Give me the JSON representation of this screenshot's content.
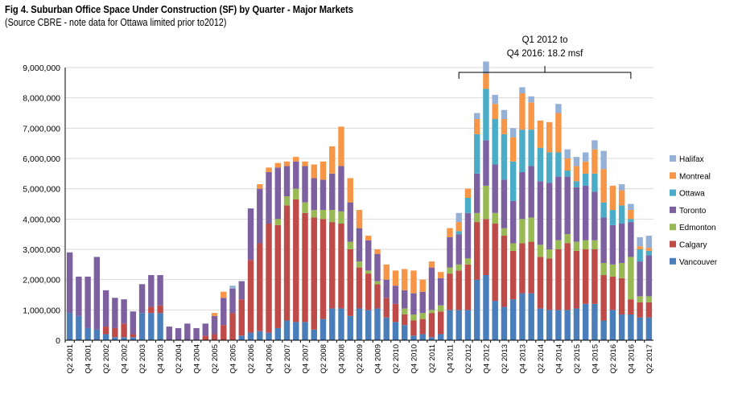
{
  "chart_data": {
    "type": "bar",
    "stacked": true,
    "title": "Fig 4. Suburban Office Space Under Construction (SF) by Quarter - Major Markets",
    "subtitle": "(Source CBRE - note data for Ottawa limited prior to2012)",
    "ylim": [
      0,
      9000000
    ],
    "y_ticks": [
      "0",
      "1,000,000",
      "2,000,000",
      "3,000,000",
      "4,000,000",
      "5,000,000",
      "6,000,000",
      "7,000,000",
      "8,000,000",
      "9,000,000"
    ],
    "grid": true,
    "legend_position": "right",
    "annotation": {
      "line1": "Q1 2012 to",
      "line2": "Q4 2016: 18.2 msf",
      "from_category": "Q1 2012",
      "to_category": "Q4 2016"
    },
    "categories": [
      "Q2 2001",
      "Q3 2001",
      "Q4 2001",
      "Q1 2002",
      "Q2 2002",
      "Q3 2002",
      "Q4 2002",
      "Q1 2003",
      "Q2 2003",
      "Q3 2003",
      "Q4 2003",
      "Q1 2004",
      "Q2 2004",
      "Q3 2004",
      "Q4 2004",
      "Q1 2005",
      "Q2 2005",
      "Q3 2005",
      "Q4 2005",
      "Q1 2006",
      "Q2 2006",
      "Q3 2006",
      "Q4 2006",
      "Q1 2007",
      "Q2 2007",
      "Q3 2007",
      "Q4 2007",
      "Q1 2008",
      "Q2 2008",
      "Q3 2008",
      "Q4 2008",
      "Q1 2009",
      "Q2 2009",
      "Q3 2009",
      "Q4 2009",
      "Q1 2010",
      "Q2 2010",
      "Q3 2010",
      "Q4 2010",
      "Q1 2011",
      "Q2 2011",
      "Q3 2011",
      "Q4 2011",
      "Q1 2012",
      "Q2 2012",
      "Q3 2012",
      "Q4 2012",
      "Q1 2013",
      "Q2 2013",
      "Q3 2013",
      "Q4 2013",
      "Q1 2014",
      "Q2 2014",
      "Q3 2014",
      "Q4 2014",
      "Q1 2015",
      "Q2 2015",
      "Q3 2015",
      "Q4 2015",
      "Q1 2016",
      "Q2 2016",
      "Q3 2016",
      "Q4 2016",
      "Q1 2017",
      "Q2 2017"
    ],
    "x_tick_labels": [
      "Q2 2001",
      "",
      "Q4 2001",
      "",
      "Q2 2002",
      "",
      "Q4 2002",
      "",
      "Q2 2003",
      "",
      "Q4 2003",
      "",
      "Q2 2004",
      "",
      "Q4 2004",
      "",
      "Q2 2005",
      "",
      "Q4 2005",
      "",
      "Q2 2006",
      "",
      "Q4 2006",
      "",
      "Q2 2007",
      "",
      "Q4 2007",
      "",
      "Q2 2008",
      "",
      "Q4 2008",
      "",
      "Q2 2009",
      "",
      "Q4 2009",
      "",
      "Q2 2010",
      "",
      "Q4 2010",
      "",
      "Q2 2011",
      "",
      "Q4 2011",
      "",
      "Q2 2012",
      "",
      "Q4 2012",
      "",
      "Q2 2013",
      "",
      "Q4 2013",
      "",
      "Q2 2014",
      "",
      "Q4 2014",
      "",
      "Q2 2015",
      "",
      "Q4 2015",
      "",
      "Q2 2016",
      "",
      "Q4 2016",
      "",
      "Q2 2017"
    ],
    "series": [
      {
        "name": "Vancouver",
        "color": "#4a7ebb",
        "values": [
          900000,
          800000,
          400000,
          350000,
          200000,
          100000,
          100000,
          100000,
          900000,
          900000,
          900000,
          0,
          0,
          0,
          0,
          0,
          0,
          0,
          0,
          150000,
          250000,
          300000,
          250000,
          400000,
          650000,
          600000,
          600000,
          350000,
          700000,
          1050000,
          1050000,
          800000,
          1050000,
          1000000,
          1050000,
          750000,
          600000,
          500000,
          150000,
          200000,
          100000,
          200000,
          1000000,
          1000000,
          1000000,
          2000000,
          2150000,
          1300000,
          1100000,
          1350000,
          1550000,
          1550000,
          1050000,
          1000000,
          1000000,
          1000000,
          1050000,
          1200000,
          1200000,
          650000,
          1000000,
          850000,
          850000,
          750000,
          750000
        ]
      },
      {
        "name": "Calgary",
        "color": "#be4b48",
        "values": [
          0,
          0,
          0,
          0,
          250000,
          300000,
          450000,
          100000,
          0,
          200000,
          250000,
          0,
          0,
          0,
          0,
          150000,
          200000,
          500000,
          900000,
          1200000,
          2400000,
          2900000,
          3600000,
          3400000,
          3800000,
          4050000,
          3600000,
          3700000,
          3300000,
          2850000,
          2800000,
          2200000,
          1350000,
          1200000,
          800000,
          650000,
          600000,
          350000,
          500000,
          500000,
          800000,
          750000,
          1200000,
          1300000,
          1500000,
          1900000,
          1850000,
          2550000,
          2350000,
          1600000,
          1650000,
          1700000,
          1700000,
          1700000,
          2000000,
          2200000,
          1900000,
          1800000,
          1800000,
          1500000,
          1100000,
          1200000,
          500000,
          500000,
          500000
        ]
      },
      {
        "name": "Edmonton",
        "color": "#98b954",
        "values": [
          0,
          0,
          0,
          0,
          0,
          0,
          0,
          0,
          0,
          0,
          0,
          0,
          0,
          0,
          0,
          0,
          0,
          0,
          0,
          0,
          0,
          0,
          0,
          200000,
          300000,
          350000,
          350000,
          250000,
          300000,
          400000,
          400000,
          250000,
          200000,
          100000,
          100000,
          0,
          0,
          200000,
          200000,
          200000,
          100000,
          200000,
          200000,
          200000,
          200000,
          300000,
          1100000,
          350000,
          250000,
          250000,
          800000,
          800000,
          400000,
          300000,
          300000,
          300000,
          300000,
          300000,
          300000,
          400000,
          400000,
          500000,
          1400000,
          200000,
          200000
        ]
      },
      {
        "name": "Toronto",
        "color": "#7d60a0",
        "values": [
          2000000,
          1300000,
          1700000,
          2400000,
          1200000,
          1000000,
          800000,
          750000,
          950000,
          1050000,
          1000000,
          450000,
          400000,
          550000,
          400000,
          400000,
          600000,
          900000,
          800000,
          600000,
          1700000,
          1800000,
          1700000,
          1700000,
          1000000,
          900000,
          1200000,
          1050000,
          1000000,
          1200000,
          1500000,
          1300000,
          1100000,
          1000000,
          900000,
          600000,
          600000,
          600000,
          700000,
          700000,
          1400000,
          900000,
          1000000,
          1000000,
          1500000,
          1300000,
          1500000,
          1600000,
          1600000,
          1400000,
          1550000,
          1700000,
          2100000,
          2200000,
          2100000,
          1900000,
          1800000,
          1800000,
          1600000,
          1500000,
          1300000,
          1300000,
          1150000,
          1150000,
          1350000
        ]
      },
      {
        "name": "Ottawa",
        "color": "#4aacc6",
        "values": [
          0,
          0,
          0,
          0,
          0,
          0,
          0,
          0,
          0,
          0,
          0,
          0,
          0,
          0,
          0,
          0,
          0,
          0,
          0,
          0,
          0,
          0,
          0,
          0,
          0,
          0,
          0,
          0,
          0,
          0,
          0,
          0,
          0,
          0,
          0,
          0,
          0,
          0,
          0,
          0,
          0,
          0,
          0,
          100000,
          500000,
          1300000,
          1700000,
          1500000,
          1500000,
          1300000,
          1400000,
          1200000,
          1100000,
          1000000,
          800000,
          200000,
          200000,
          400000,
          600000,
          500000,
          500000,
          600000,
          100000,
          400000,
          150000
        ]
      },
      {
        "name": "Montreal",
        "color": "#f79646",
        "values": [
          0,
          0,
          0,
          0,
          0,
          0,
          0,
          0,
          0,
          0,
          0,
          0,
          0,
          0,
          0,
          0,
          100000,
          200000,
          0,
          0,
          0,
          150000,
          150000,
          150000,
          150000,
          150000,
          150000,
          450000,
          600000,
          900000,
          1300000,
          800000,
          600000,
          150000,
          150000,
          500000,
          500000,
          700000,
          750000,
          400000,
          200000,
          200000,
          300000,
          300000,
          300000,
          500000,
          500000,
          500000,
          500000,
          800000,
          1200000,
          900000,
          900000,
          1000000,
          1300000,
          400000,
          500000,
          400000,
          800000,
          1100000,
          800000,
          500000,
          300000,
          100000,
          100000
        ]
      },
      {
        "name": "Halifax",
        "color": "#96b1d8",
        "values": [
          0,
          0,
          0,
          0,
          0,
          0,
          0,
          0,
          0,
          0,
          0,
          0,
          0,
          0,
          0,
          0,
          0,
          0,
          100000,
          0,
          0,
          0,
          0,
          0,
          0,
          0,
          0,
          0,
          0,
          0,
          0,
          0,
          0,
          0,
          0,
          0,
          0,
          0,
          0,
          0,
          0,
          0,
          0,
          300000,
          0,
          200000,
          400000,
          300000,
          300000,
          300000,
          200000,
          200000,
          0,
          0,
          300000,
          300000,
          300000,
          300000,
          300000,
          600000,
          0,
          200000,
          200000,
          300000,
          400000
        ]
      }
    ]
  }
}
